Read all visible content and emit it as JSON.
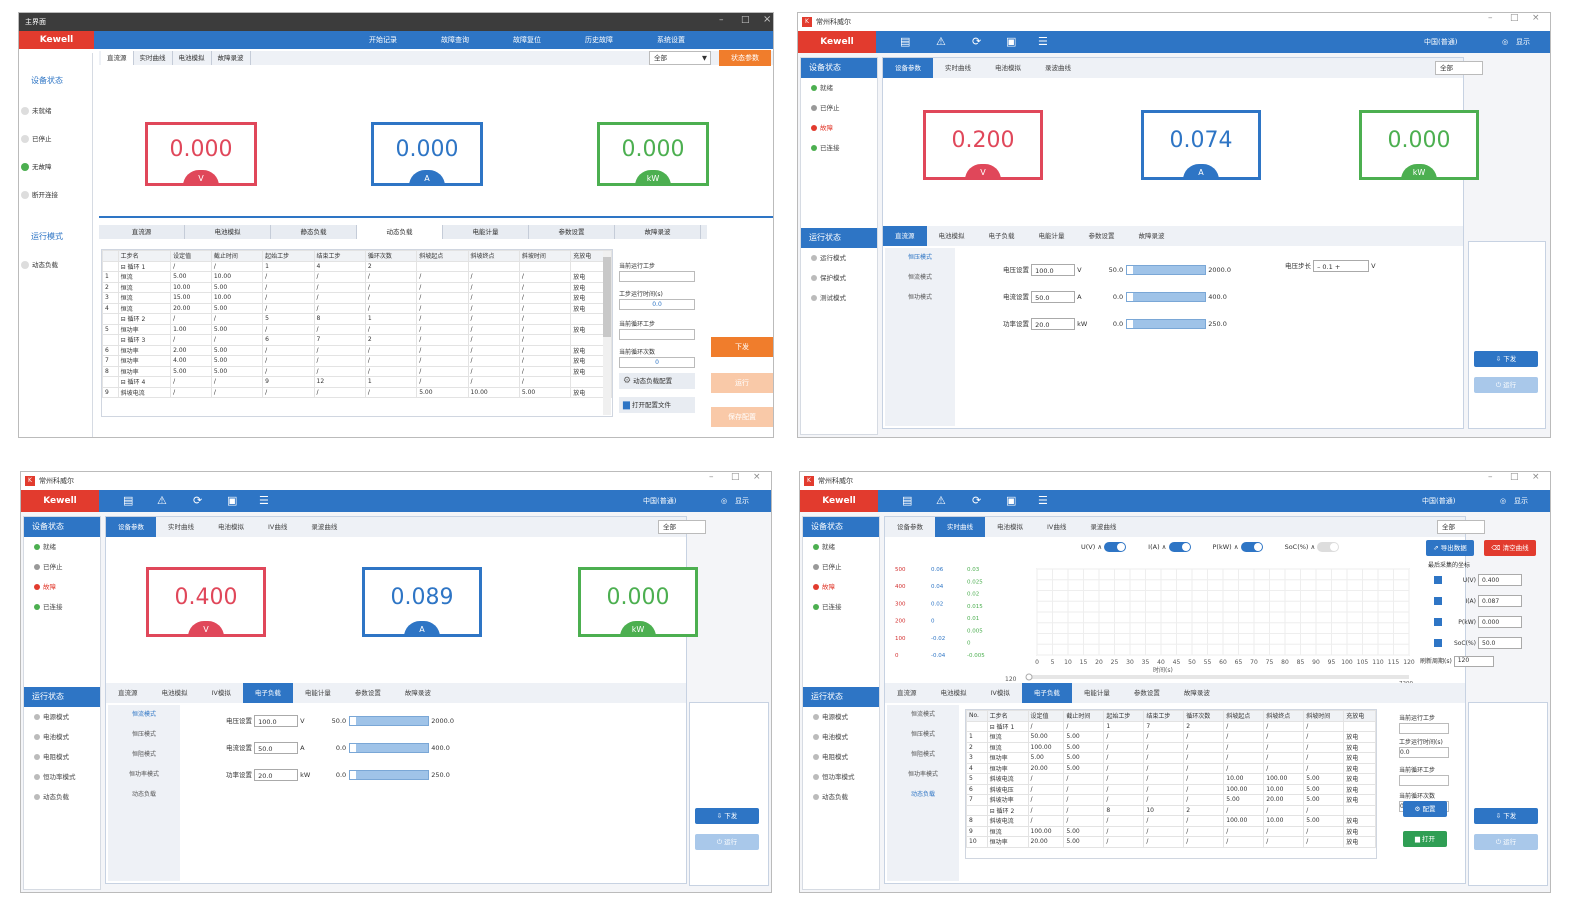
{
  "p1": {
    "title": "主界面",
    "brand": "Kewell",
    "topmenu": [
      "开始记录",
      "故障查询",
      "故障复位",
      "历史故障",
      "系统设置"
    ],
    "toptabs": [
      "直流源",
      "实时曲线",
      "电池模拟",
      "故障录波"
    ],
    "select": "全部",
    "status_btn": "状态参数",
    "side_head1": "设备状态",
    "side_items": [
      "未就绪",
      "已停止",
      "无故障",
      "断开连接"
    ],
    "side_head2": "运行模式",
    "side_mode": "动态负载",
    "meters": [
      {
        "value": "0.000",
        "unit": "V"
      },
      {
        "value": "0.000",
        "unit": "A"
      },
      {
        "value": "0.000",
        "unit": "kW"
      }
    ],
    "subtabs": [
      "直流源",
      "电池模拟",
      "静态负载",
      "动态负载",
      "电能计量",
      "参数设置",
      "故障录波"
    ],
    "columns": [
      "",
      "工步名",
      "设定值",
      "截止时间",
      "起始工步",
      "结束工步",
      "循环次数",
      "斜坡起点",
      "斜坡终点",
      "斜坡时间",
      "充放电"
    ],
    "rows": [
      [
        "",
        "⊟ 循环 1",
        "/",
        "/",
        "1",
        "4",
        "2",
        "",
        "",
        "",
        ""
      ],
      [
        "1",
        "恒流",
        "5.00",
        "10.00",
        "/",
        "/",
        "/",
        "/",
        "/",
        "/",
        "放电"
      ],
      [
        "2",
        "恒流",
        "10.00",
        "5.00",
        "/",
        "/",
        "/",
        "/",
        "/",
        "/",
        "放电"
      ],
      [
        "3",
        "恒流",
        "15.00",
        "10.00",
        "/",
        "/",
        "/",
        "/",
        "/",
        "/",
        "放电"
      ],
      [
        "4",
        "恒流",
        "20.00",
        "5.00",
        "/",
        "/",
        "/",
        "/",
        "/",
        "/",
        "放电"
      ],
      [
        "",
        "⊟ 循环 2",
        "/",
        "/",
        "5",
        "8",
        "1",
        "/",
        "/",
        "/",
        ""
      ],
      [
        "5",
        "恒功率",
        "1.00",
        "5.00",
        "/",
        "/",
        "/",
        "/",
        "/",
        "/",
        "放电"
      ],
      [
        "",
        "⊟ 循环 3",
        "/",
        "/",
        "6",
        "7",
        "2",
        "/",
        "/",
        "/",
        ""
      ],
      [
        "6",
        "恒功率",
        "2.00",
        "5.00",
        "/",
        "/",
        "/",
        "/",
        "/",
        "/",
        "放电"
      ],
      [
        "7",
        "恒功率",
        "4.00",
        "5.00",
        "/",
        "/",
        "/",
        "/",
        "/",
        "/",
        "放电"
      ],
      [
        "8",
        "恒功率",
        "5.00",
        "5.00",
        "/",
        "/",
        "/",
        "/",
        "/",
        "/",
        "放电"
      ],
      [
        "",
        "⊟ 循环 4",
        "/",
        "/",
        "9",
        "12",
        "1",
        "/",
        "/",
        "/",
        ""
      ],
      [
        "9",
        "斜坡电流",
        "/",
        "/",
        "/",
        "/",
        "/",
        "5.00",
        "10.00",
        "5.00",
        "放电"
      ]
    ],
    "fields": [
      {
        "label": "当前运行工步",
        "value": ""
      },
      {
        "label": "工步运行时间(s)",
        "value": "0.0"
      },
      {
        "label": "当前循环工步",
        "value": ""
      },
      {
        "label": "当前循环次数",
        "value": "0"
      }
    ],
    "btn_dyn": "动态负载配置",
    "btn_open": "打开配置文件",
    "btn_issue": "下发",
    "btn_run": "运行",
    "btn_save": "保存配置"
  },
  "p2": {
    "title": "常州科威尔",
    "brand": "Kewell",
    "user": "中国(普通)",
    "display": "显示",
    "side_head1": "设备状态",
    "status": [
      {
        "label": "就绪",
        "color": "#4caf50"
      },
      {
        "label": "已停止",
        "color": "#999999"
      },
      {
        "label": "故障",
        "color": "#e23b2e"
      },
      {
        "label": "已连接",
        "color": "#4caf50"
      }
    ],
    "side_head2": "运行状态",
    "modes": [
      "运行模式",
      "保护模式",
      "测试模式"
    ],
    "tabs": [
      "设备参数",
      "实时曲线",
      "电池模拟",
      "录波曲线"
    ],
    "select": "全部",
    "status_btn": "状态参数",
    "meters": [
      {
        "value": "0.200",
        "unit": "V"
      },
      {
        "value": "0.074",
        "unit": "A"
      },
      {
        "value": "0.000",
        "unit": "kW"
      }
    ],
    "subtabs": [
      "直流源",
      "电池模拟",
      "电子负载",
      "电能计量",
      "参数设置",
      "故障录波"
    ],
    "modeitems": [
      "恒压模式",
      "恒流模式",
      "恒功模式"
    ],
    "settings": [
      {
        "label": "电压设置",
        "value": "100.0",
        "unit": "V",
        "min": "50.0",
        "max": "2000.0"
      },
      {
        "label": "电流设置",
        "value": "50.0",
        "unit": "A",
        "min": "0.0",
        "max": "400.0"
      },
      {
        "label": "功率设置",
        "value": "20.0",
        "unit": "kW",
        "min": "0.0",
        "max": "250.0"
      }
    ],
    "step_label": "电压步长",
    "step_value": "0.1",
    "step_unit": "V",
    "btn_issue": "下发",
    "btn_run": "运行"
  },
  "p3": {
    "title": "常州科威尔",
    "brand": "Kewell",
    "user": "中国(普通)",
    "display": "显示",
    "side_head1": "设备状态",
    "status": [
      {
        "label": "就绪",
        "color": "#4caf50"
      },
      {
        "label": "已停止",
        "color": "#999999"
      },
      {
        "label": "故障",
        "color": "#e23b2e"
      },
      {
        "label": "已连接",
        "color": "#4caf50"
      }
    ],
    "side_head2": "运行状态",
    "modes": [
      "电源模式",
      "电池模式",
      "电阻模式",
      "恒功率模式",
      "动态负载"
    ],
    "tabs": [
      "设备参数",
      "实时曲线",
      "电池模拟",
      "IV曲线",
      "录波曲线"
    ],
    "select": "全部",
    "status_btn": "状态参数",
    "meters": [
      {
        "value": "0.400",
        "unit": "V"
      },
      {
        "value": "0.089",
        "unit": "A"
      },
      {
        "value": "0.000",
        "unit": "kW"
      }
    ],
    "subtabs": [
      "直流源",
      "电池模拟",
      "IV模拟",
      "电子负载",
      "电能计量",
      "参数设置",
      "故障录波"
    ],
    "modeitems": [
      "恒流模式",
      "恒压模式",
      "恒阻模式",
      "恒功率模式",
      "动态负载"
    ],
    "settings": [
      {
        "label": "电压设置",
        "value": "100.0",
        "unit": "V",
        "min": "50.0",
        "max": "2000.0"
      },
      {
        "label": "电流设置",
        "value": "50.0",
        "unit": "A",
        "min": "0.0",
        "max": "400.0"
      },
      {
        "label": "功率设置",
        "value": "20.0",
        "unit": "kW",
        "min": "0.0",
        "max": "250.0"
      }
    ],
    "btn_issue": "下发",
    "btn_run": "运行"
  },
  "p4": {
    "title": "常州科威尔",
    "brand": "Kewell",
    "user": "中国(普通)",
    "display": "显示",
    "side_head1": "设备状态",
    "status": [
      {
        "label": "就绪",
        "color": "#4caf50"
      },
      {
        "label": "已停止",
        "color": "#999999"
      },
      {
        "label": "故障",
        "color": "#e23b2e"
      },
      {
        "label": "已连接",
        "color": "#4caf50"
      }
    ],
    "side_head2": "运行状态",
    "modes": [
      "电源模式",
      "电池模式",
      "电阻模式",
      "恒功率模式",
      "动态负载"
    ],
    "tabs": [
      "设备参数",
      "实时曲线",
      "电池模拟",
      "IV曲线",
      "录波曲线"
    ],
    "select": "全部",
    "status_btn": "状态参数",
    "legend": [
      {
        "label": "U(V)",
        "on": true
      },
      {
        "label": "I(A)",
        "on": true
      },
      {
        "label": "P(kW)",
        "on": true
      },
      {
        "label": "SoC(%)",
        "on": false
      }
    ],
    "btn_export": "导出数据",
    "btn_clear": "清空曲线",
    "cursor_title": "最后采集的坐标",
    "cursors": [
      {
        "label": "U(V)",
        "value": "0.400"
      },
      {
        "label": "I(A)",
        "value": "0.087"
      },
      {
        "label": "P(kW)",
        "value": "0.000"
      },
      {
        "label": "SoC(%)",
        "value": "50.0"
      }
    ],
    "period_label": "刷新周期(s)",
    "period_value": "120",
    "y_ticks_u": [
      "500",
      "400",
      "300",
      "200",
      "100",
      "0"
    ],
    "y_ticks_i": [
      "0.06",
      "0.04",
      "0.02",
      "0",
      "-0.02",
      "-0.04"
    ],
    "y_ticks_p": [
      "0.03",
      "0.025",
      "0.02",
      "0.015",
      "0.01",
      "0.005",
      "0",
      "-0.005"
    ],
    "x_ticks": [
      "0",
      "5",
      "10",
      "15",
      "20",
      "25",
      "30",
      "35",
      "40",
      "45",
      "50",
      "55",
      "60",
      "65",
      "70",
      "75",
      "80",
      "85",
      "90",
      "95",
      "100",
      "105",
      "110",
      "115",
      "120"
    ],
    "x_label": "时间(s)",
    "range_left": "120",
    "range_right": "7200",
    "subtabs": [
      "直流源",
      "电池模拟",
      "IV模拟",
      "电子负载",
      "电能计量",
      "参数设置",
      "故障录波"
    ],
    "modeitems": [
      "恒流模式",
      "恒压模式",
      "恒阻模式",
      "恒功率模式",
      "动态负载"
    ],
    "columns": [
      "No.",
      "工步名",
      "设定值",
      "截止时间",
      "起始工步",
      "结束工步",
      "循环次数",
      "斜坡起点",
      "斜坡终点",
      "斜坡时间",
      "充放电"
    ],
    "rows": [
      [
        "",
        "⊟ 循环 1",
        "/",
        "/",
        "1",
        "7",
        "2",
        "/",
        "/",
        "/",
        ""
      ],
      [
        "1",
        "恒流",
        "50.00",
        "5.00",
        "/",
        "/",
        "/",
        "/",
        "/",
        "/",
        "放电"
      ],
      [
        "2",
        "恒流",
        "100.00",
        "5.00",
        "/",
        "/",
        "/",
        "/",
        "/",
        "/",
        "放电"
      ],
      [
        "3",
        "恒功率",
        "5.00",
        "5.00",
        "/",
        "/",
        "/",
        "/",
        "/",
        "/",
        "放电"
      ],
      [
        "4",
        "恒功率",
        "20.00",
        "5.00",
        "/",
        "/",
        "/",
        "/",
        "/",
        "/",
        "放电"
      ],
      [
        "5",
        "斜坡电流",
        "/",
        "/",
        "/",
        "/",
        "/",
        "10.00",
        "100.00",
        "5.00",
        "放电"
      ],
      [
        "6",
        "斜坡电压",
        "/",
        "/",
        "/",
        "/",
        "/",
        "100.00",
        "10.00",
        "5.00",
        "放电"
      ],
      [
        "7",
        "斜坡功率",
        "/",
        "/",
        "/",
        "/",
        "/",
        "5.00",
        "20.00",
        "5.00",
        "放电"
      ],
      [
        "",
        "⊟ 循环 2",
        "/",
        "/",
        "8",
        "10",
        "2",
        "/",
        "/",
        "/",
        ""
      ],
      [
        "8",
        "斜坡电流",
        "/",
        "/",
        "/",
        "/",
        "/",
        "100.00",
        "10.00",
        "5.00",
        "放电"
      ],
      [
        "9",
        "恒流",
        "100.00",
        "5.00",
        "/",
        "/",
        "/",
        "/",
        "/",
        "/",
        "放电"
      ],
      [
        "10",
        "恒功率",
        "20.00",
        "5.00",
        "/",
        "/",
        "/",
        "/",
        "/",
        "/",
        "放电"
      ]
    ],
    "fields": [
      {
        "label": "当前运行工步",
        "value": ""
      },
      {
        "label": "工步运行时间(s)",
        "value": "0.0"
      },
      {
        "label": "当前循环工步",
        "value": ""
      },
      {
        "label": "当前循环次数",
        "value": "0"
      }
    ],
    "btn_config": "配置",
    "btn_open": "打开",
    "btn_issue": "下发",
    "btn_run": "运行"
  }
}
